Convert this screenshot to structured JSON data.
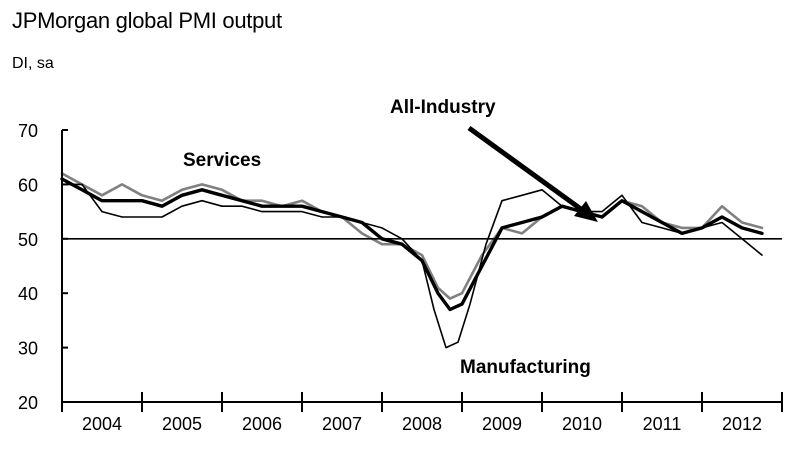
{
  "header": {
    "title": "JPMorgan global PMI output",
    "subtitle": "DI, sa"
  },
  "chart_data": {
    "type": "line",
    "title": "JPMorgan global PMI output",
    "subtitle": "DI, sa",
    "ylim": [
      20,
      70
    ],
    "y_ticks": [
      "20",
      "30",
      "40",
      "50",
      "60",
      "70"
    ],
    "xlim": [
      2004.0,
      2013.0
    ],
    "x_tick_labels": [
      "2004",
      "2005",
      "2006",
      "2007",
      "2008",
      "2009",
      "2010",
      "2011",
      "2012"
    ],
    "reference_line": 50,
    "grid": false,
    "annotations": [
      "Services",
      "All-Industry",
      "Manufacturing"
    ],
    "series": [
      {
        "name": "All-Industry",
        "color": "#000000",
        "x": [
          2004.0,
          2004.25,
          2004.5,
          2004.75,
          2005.0,
          2005.25,
          2005.5,
          2005.75,
          2006.0,
          2006.25,
          2006.5,
          2006.75,
          2007.0,
          2007.25,
          2007.5,
          2007.75,
          2008.0,
          2008.25,
          2008.5,
          2008.7,
          2008.85,
          2009.0,
          2009.25,
          2009.5,
          2009.75,
          2010.0,
          2010.25,
          2010.5,
          2010.75,
          2011.0,
          2011.25,
          2011.5,
          2011.75,
          2012.0,
          2012.25,
          2012.5,
          2012.75
        ],
        "y": [
          61,
          59,
          57,
          57,
          57,
          56,
          58,
          59,
          58,
          57,
          56,
          56,
          56,
          55,
          54,
          53,
          50,
          49,
          46,
          40,
          37,
          38,
          45,
          52,
          53,
          54,
          56,
          55,
          54,
          57,
          55,
          53,
          51,
          52,
          54,
          52,
          51
        ]
      },
      {
        "name": "Services",
        "color": "#808080",
        "x": [
          2004.0,
          2004.25,
          2004.5,
          2004.75,
          2005.0,
          2005.25,
          2005.5,
          2005.75,
          2006.0,
          2006.25,
          2006.5,
          2006.75,
          2007.0,
          2007.25,
          2007.5,
          2007.75,
          2008.0,
          2008.25,
          2008.5,
          2008.7,
          2008.85,
          2009.0,
          2009.25,
          2009.5,
          2009.75,
          2010.0,
          2010.25,
          2010.5,
          2010.75,
          2011.0,
          2011.25,
          2011.5,
          2011.75,
          2012.0,
          2012.25,
          2012.5,
          2012.75
        ],
        "y": [
          62,
          60,
          58,
          60,
          58,
          57,
          59,
          60,
          59,
          57,
          57,
          56,
          57,
          55,
          54,
          51,
          49,
          49,
          47,
          41,
          39,
          40,
          47,
          52,
          51,
          54,
          56,
          55,
          54,
          57,
          56,
          53,
          52,
          52,
          56,
          53,
          52
        ]
      },
      {
        "name": "Manufacturing",
        "color": "#000000",
        "x": [
          2004.0,
          2004.25,
          2004.5,
          2004.75,
          2005.0,
          2005.25,
          2005.5,
          2005.75,
          2006.0,
          2006.25,
          2006.5,
          2006.75,
          2007.0,
          2007.25,
          2007.5,
          2007.75,
          2008.0,
          2008.25,
          2008.5,
          2008.65,
          2008.8,
          2008.95,
          2009.1,
          2009.3,
          2009.5,
          2009.75,
          2010.0,
          2010.25,
          2010.5,
          2010.75,
          2011.0,
          2011.25,
          2011.5,
          2011.75,
          2012.0,
          2012.25,
          2012.5,
          2012.75
        ],
        "y": [
          60,
          60,
          55,
          54,
          54,
          54,
          56,
          57,
          56,
          56,
          55,
          55,
          55,
          54,
          54,
          53,
          52,
          50,
          46,
          37,
          30,
          31,
          38,
          49,
          57,
          58,
          59,
          56,
          55,
          55,
          58,
          53,
          52,
          51,
          52,
          53,
          50,
          47
        ]
      }
    ]
  }
}
